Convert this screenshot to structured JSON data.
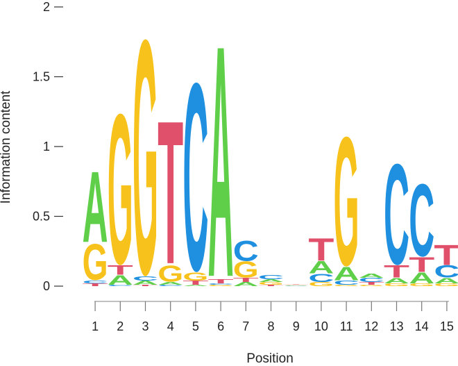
{
  "chart_data": {
    "type": "sequence-logo",
    "xlabel": "Position",
    "ylabel": "Information content",
    "ylim": [
      0,
      2
    ],
    "yticks": [
      "0",
      "0.5",
      "1",
      "1.5",
      "2"
    ],
    "positions": [
      "1",
      "2",
      "3",
      "4",
      "5",
      "6",
      "7",
      "8",
      "9",
      "10",
      "11",
      "12",
      "13",
      "14",
      "15"
    ],
    "colors": {
      "A": "#5fcf4a",
      "C": "#1f8fe0",
      "G": "#f7c21c",
      "T": "#e0506a"
    },
    "columns": [
      [
        [
          "T",
          0.02
        ],
        [
          "C",
          0.02
        ],
        [
          "G",
          0.27
        ],
        [
          "A",
          0.53
        ]
      ],
      [
        [
          "C",
          0.01
        ],
        [
          "A",
          0.07
        ],
        [
          "T",
          0.07
        ],
        [
          "G",
          1.12
        ]
      ],
      [
        [
          "T",
          0.01
        ],
        [
          "A",
          0.03
        ],
        [
          "C",
          0.03
        ],
        [
          "G",
          1.75
        ]
      ],
      [
        [
          "C",
          0.01
        ],
        [
          "A",
          0.02
        ],
        [
          "G",
          0.12
        ],
        [
          "T",
          1.07
        ]
      ],
      [
        [
          "A",
          0.01
        ],
        [
          "T",
          0.03
        ],
        [
          "G",
          0.06
        ],
        [
          "C",
          1.4
        ]
      ],
      [
        [
          "G",
          0.01
        ],
        [
          "C",
          0.01
        ],
        [
          "T",
          0.03
        ],
        [
          "A",
          1.73
        ]
      ],
      [
        [
          "A",
          0.03
        ],
        [
          "T",
          0.03
        ],
        [
          "G",
          0.12
        ],
        [
          "C",
          0.15
        ]
      ],
      [
        [
          "T",
          0.01
        ],
        [
          "G",
          0.02
        ],
        [
          "A",
          0.02
        ],
        [
          "C",
          0.03
        ]
      ],
      [
        [
          "A",
          0.003
        ],
        [
          "C",
          0.003
        ],
        [
          "G",
          0.003
        ],
        [
          "T",
          0.003
        ]
      ],
      [
        [
          "G",
          0.03
        ],
        [
          "C",
          0.06
        ],
        [
          "A",
          0.09
        ],
        [
          "T",
          0.17
        ]
      ],
      [
        [
          "G",
          0.01
        ],
        [
          "C",
          0.03
        ],
        [
          "A",
          0.1
        ],
        [
          "G",
          0.96
        ]
      ],
      [
        [
          "G",
          0.01
        ],
        [
          "T",
          0.02
        ],
        [
          "C",
          0.03
        ],
        [
          "A",
          0.03
        ]
      ],
      [
        [
          "G",
          0.02
        ],
        [
          "A",
          0.04
        ],
        [
          "T",
          0.09
        ],
        [
          "C",
          0.75
        ]
      ],
      [
        [
          "G",
          0.02
        ],
        [
          "A",
          0.08
        ],
        [
          "T",
          0.11
        ],
        [
          "C",
          0.54
        ]
      ],
      [
        [
          "G",
          0.02
        ],
        [
          "A",
          0.04
        ],
        [
          "C",
          0.09
        ],
        [
          "T",
          0.15
        ]
      ]
    ]
  }
}
